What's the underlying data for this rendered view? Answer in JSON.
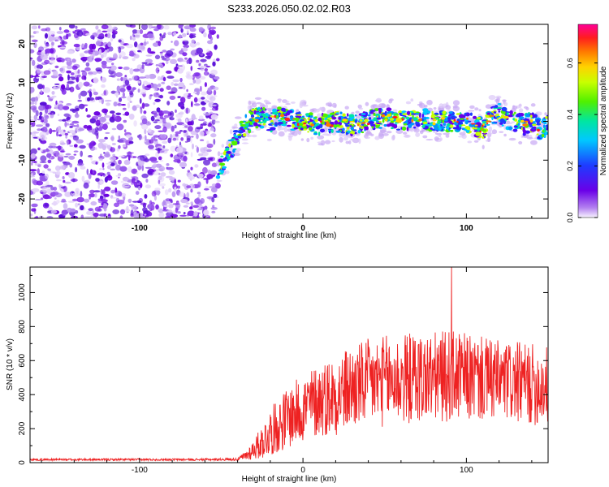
{
  "title": "S233.2026.050.02.02.R03",
  "chart_data": [
    {
      "type": "heatmap",
      "name": "spectrogram",
      "xlabel": "Height of straight line (km)",
      "ylabel": "Frequency (Hz)",
      "xlim": [
        -167,
        150
      ],
      "ylim": [
        -25,
        25
      ],
      "xticks": [
        -100,
        0,
        100
      ],
      "yticks": [
        -20,
        -10,
        0,
        10,
        20
      ],
      "noise_region_end_km": -52,
      "ridge": {
        "x": [
          -52,
          -45,
          -40,
          -35,
          -30,
          -25,
          -20,
          -15,
          -10,
          -5,
          0,
          10,
          20,
          30,
          40,
          50,
          60,
          70,
          80,
          90,
          100,
          105,
          110,
          115,
          120,
          125,
          130,
          135,
          140,
          145,
          150
        ],
        "y": [
          -12,
          -8,
          -4,
          -1,
          1,
          1,
          0,
          1,
          1,
          0,
          0,
          -1,
          0,
          -1,
          0,
          1,
          0,
          1,
          0,
          0,
          0,
          -1,
          -2,
          1,
          2,
          0,
          0,
          -1,
          0,
          -2,
          -1
        ]
      },
      "colorbar": {
        "label": "Normalized spectral amplitude",
        "min": 0.0,
        "max": 0.75,
        "ticks": [
          0.0,
          0.2,
          0.4,
          0.6
        ],
        "tick_labels": [
          "0.0",
          "0.2",
          "0.4",
          "0.6"
        ]
      }
    },
    {
      "type": "line",
      "name": "snr",
      "xlabel": "Height of straight line (km)",
      "ylabel": "SNR (10 * v/v)",
      "xlim": [
        -167,
        150
      ],
      "ylim": [
        0,
        1150
      ],
      "xticks": [
        -100,
        0,
        100
      ],
      "yticks": [
        0,
        200,
        400,
        600,
        800,
        1000
      ],
      "color": "#ee2222",
      "envelope": {
        "x": [
          -167,
          -100,
          -60,
          -40,
          -35,
          -30,
          -25,
          -20,
          -10,
          0,
          10,
          20,
          30,
          40,
          50,
          60,
          70,
          80,
          90,
          100,
          110,
          120,
          130,
          140,
          150
        ],
        "mean": [
          18,
          18,
          18,
          20,
          40,
          80,
          120,
          180,
          260,
          320,
          370,
          400,
          440,
          470,
          480,
          490,
          500,
          500,
          510,
          500,
          490,
          480,
          470,
          460,
          450
        ],
        "spread": [
          6,
          6,
          6,
          8,
          30,
          60,
          100,
          140,
          180,
          200,
          220,
          240,
          250,
          260,
          270,
          270,
          270,
          270,
          270,
          260,
          250,
          240,
          240,
          240,
          240
        ]
      },
      "peak": {
        "x": 91,
        "y": 1150
      }
    }
  ]
}
